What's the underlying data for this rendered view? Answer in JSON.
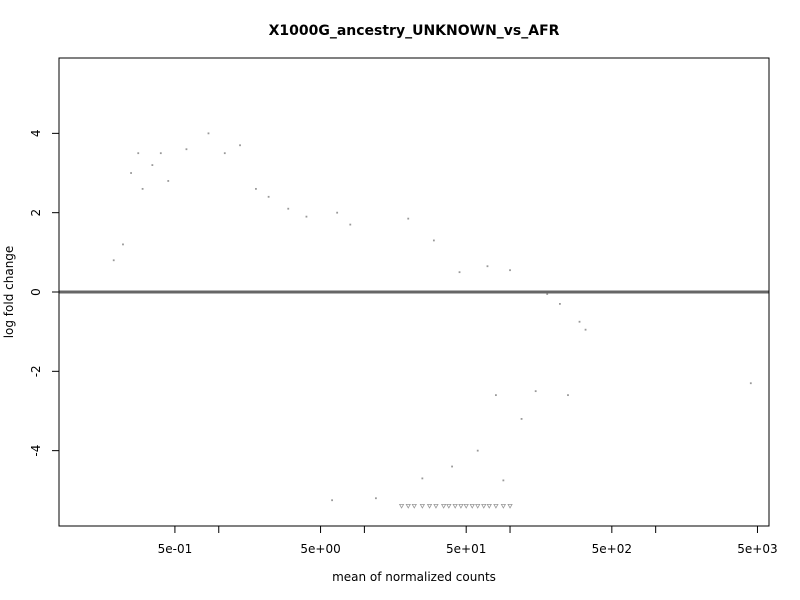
{
  "chart_data": {
    "type": "scatter",
    "title": "X1000G_ancestry_UNKNOWN_vs_AFR",
    "xlabel": "mean of normalized counts",
    "ylabel": "log fold change",
    "x_scale": "log10",
    "xlim": [
      0.08,
      6000
    ],
    "ylim": [
      -5.9,
      5.9
    ],
    "x_tick_values": [
      0.5,
      5,
      50,
      500,
      5000
    ],
    "x_minor_tick_values": [
      1,
      10,
      100,
      1000
    ],
    "x_tick_labels": [
      "5e-01",
      "5e+00",
      "5e+01",
      "5e+02",
      "5e+03"
    ],
    "y_tick_values": [
      4,
      2,
      0,
      -2,
      -4
    ],
    "y_tick_labels": [
      "4",
      "2",
      "0",
      "-2",
      "-4"
    ],
    "reference_line_y": 0,
    "grid": false,
    "point_color": "#999999",
    "line_color": "#666666",
    "clipped_marker": "triangle-down",
    "clip_value": -5.4,
    "series": [
      {
        "points": [
          [
            0.19,
            0.8
          ],
          [
            0.22,
            1.2
          ],
          [
            0.25,
            3.0
          ],
          [
            0.28,
            3.5
          ],
          [
            0.3,
            2.6
          ],
          [
            0.35,
            3.2
          ],
          [
            0.4,
            3.5
          ],
          [
            0.45,
            2.8
          ],
          [
            0.6,
            3.6
          ],
          [
            0.85,
            4.0
          ],
          [
            1.1,
            3.5
          ],
          [
            1.4,
            3.7
          ],
          [
            1.8,
            2.6
          ],
          [
            2.2,
            2.4
          ],
          [
            3.0,
            2.1
          ],
          [
            4.0,
            1.9
          ],
          [
            6.5,
            2.0
          ],
          [
            8.0,
            1.7
          ],
          [
            20,
            1.85
          ],
          [
            30,
            1.3
          ],
          [
            45,
            0.5
          ],
          [
            70,
            0.65
          ],
          [
            100,
            0.55
          ],
          [
            130,
            0.0
          ],
          [
            180,
            -0.05
          ],
          [
            220,
            -0.3
          ],
          [
            300,
            -0.75
          ],
          [
            330,
            -0.95
          ],
          [
            120,
            -3.2
          ],
          [
            150,
            -2.5
          ],
          [
            250,
            -2.6
          ],
          [
            4500,
            -2.3
          ],
          [
            90,
            -4.75
          ],
          [
            80,
            -2.6
          ],
          [
            60,
            -4.0
          ],
          [
            40,
            -4.4
          ],
          [
            25,
            -4.7
          ],
          [
            12,
            -5.2
          ],
          [
            6,
            -5.25
          ]
        ]
      },
      {
        "name": "",
        "clipped_points": [
          [
            18,
            -5.4
          ],
          [
            20,
            -5.4
          ],
          [
            22,
            -5.4
          ],
          [
            25,
            -5.4
          ],
          [
            28,
            -5.4
          ],
          [
            31,
            -5.4
          ],
          [
            35,
            -5.4
          ],
          [
            38,
            -5.4
          ],
          [
            42,
            -5.4
          ],
          [
            46,
            -5.4
          ],
          [
            50,
            -5.4
          ],
          [
            55,
            -5.4
          ],
          [
            60,
            -5.4
          ],
          [
            66,
            -5.4
          ],
          [
            72,
            -5.4
          ],
          [
            80,
            -5.4
          ],
          [
            90,
            -5.4
          ],
          [
            100,
            -5.4
          ]
        ]
      }
    ]
  }
}
